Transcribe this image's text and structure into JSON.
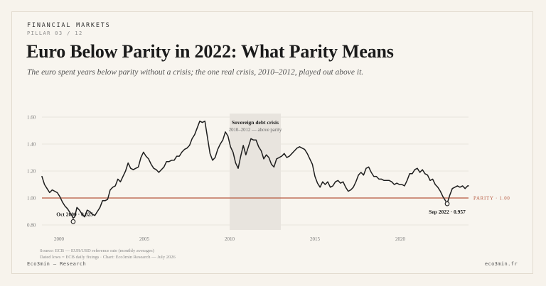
{
  "header": {
    "kicker": "FINANCIAL MARKETS",
    "pillar": "PILLAR 03 / 12",
    "title": "Euro Below Parity in 2022: What Parity Means",
    "subtitle": "The euro spent years below parity without a crisis; the one real crisis, 2010–2012, played out above it."
  },
  "footer": {
    "source_line1": "Source: ECB — EUR/USD reference rate (monthly averages)",
    "source_line2": "Dated lows = ECB daily fixings · Chart: Eco3min Research — July 2026",
    "left": "Eco3min — Research",
    "right": "eco3min.fr"
  },
  "colors": {
    "line": "#1e1e1e",
    "parity": "#b5573d",
    "shade": "#e8e4de",
    "grid": "#e4dfd6",
    "tick": "#7a7a7a"
  },
  "chart_data": {
    "type": "line",
    "xlim": [
      1999.0,
      2024.0
    ],
    "ylim": [
      0.8,
      1.6
    ],
    "yticks": [
      {
        "value": 0.8,
        "label": "0.80"
      },
      {
        "value": 1.0,
        "label": "1.00"
      },
      {
        "value": 1.2,
        "label": "1.20"
      },
      {
        "value": 1.4,
        "label": "1.40"
      },
      {
        "value": 1.6,
        "label": "1.60"
      }
    ],
    "xticks": [
      {
        "value": 2000,
        "label": "2000"
      },
      {
        "value": 2005,
        "label": "2005"
      },
      {
        "value": 2010,
        "label": "2010"
      },
      {
        "value": 2015,
        "label": "2015"
      },
      {
        "value": 2020,
        "label": "2020"
      }
    ],
    "grid": true,
    "series": [
      {
        "x": [
          1999.0,
          1999.15,
          1999.3,
          1999.45,
          1999.6,
          1999.75,
          1999.9,
          2000.05,
          2000.2,
          2000.35,
          2000.5,
          2000.6,
          2000.75,
          2000.83,
          2000.92,
          2001.05,
          2001.2,
          2001.35,
          2001.5,
          2001.65,
          2001.8,
          2001.95,
          2002.1,
          2002.25,
          2002.4,
          2002.55,
          2002.7,
          2002.85,
          2003.0,
          2003.15,
          2003.3,
          2003.45,
          2003.6,
          2003.75,
          2003.9,
          2004.05,
          2004.2,
          2004.35,
          2004.5,
          2004.65,
          2004.8,
          2004.95,
          2005.1,
          2005.25,
          2005.4,
          2005.55,
          2005.7,
          2005.85,
          2006.0,
          2006.15,
          2006.3,
          2006.45,
          2006.6,
          2006.75,
          2006.9,
          2007.05,
          2007.2,
          2007.35,
          2007.5,
          2007.65,
          2007.8,
          2007.95,
          2008.1,
          2008.25,
          2008.4,
          2008.55,
          2008.7,
          2008.85,
          2009.0,
          2009.15,
          2009.3,
          2009.45,
          2009.6,
          2009.75,
          2009.9,
          2010.05,
          2010.2,
          2010.35,
          2010.5,
          2010.65,
          2010.8,
          2010.95,
          2011.1,
          2011.25,
          2011.4,
          2011.55,
          2011.7,
          2011.85,
          2012.0,
          2012.15,
          2012.3,
          2012.45,
          2012.6,
          2012.75,
          2012.9,
          2013.05,
          2013.2,
          2013.35,
          2013.5,
          2013.65,
          2013.8,
          2013.95,
          2014.1,
          2014.25,
          2014.4,
          2014.55,
          2014.7,
          2014.85,
          2015.0,
          2015.15,
          2015.3,
          2015.45,
          2015.6,
          2015.75,
          2015.9,
          2016.05,
          2016.2,
          2016.35,
          2016.5,
          2016.65,
          2016.8,
          2016.95,
          2017.1,
          2017.25,
          2017.4,
          2017.55,
          2017.7,
          2017.85,
          2018.0,
          2018.15,
          2018.3,
          2018.45,
          2018.6,
          2018.75,
          2018.9,
          2019.05,
          2019.2,
          2019.35,
          2019.5,
          2019.65,
          2019.8,
          2019.95,
          2020.1,
          2020.25,
          2020.4,
          2020.55,
          2020.7,
          2020.85,
          2021.0,
          2021.15,
          2021.3,
          2021.45,
          2021.6,
          2021.75,
          2021.9,
          2022.05,
          2022.2,
          2022.35,
          2022.5,
          2022.65,
          2022.75,
          2022.9,
          2023.05,
          2023.2,
          2023.35,
          2023.5,
          2023.65,
          2023.8,
          2023.95,
          2024.0
        ],
        "values": [
          1.16,
          1.1,
          1.07,
          1.04,
          1.06,
          1.05,
          1.04,
          1.01,
          0.97,
          0.94,
          0.92,
          0.9,
          0.87,
          0.85,
          0.86,
          0.93,
          0.91,
          0.88,
          0.86,
          0.91,
          0.9,
          0.88,
          0.87,
          0.9,
          0.93,
          0.98,
          0.98,
          0.99,
          1.06,
          1.08,
          1.09,
          1.14,
          1.12,
          1.16,
          1.2,
          1.26,
          1.22,
          1.21,
          1.22,
          1.23,
          1.3,
          1.34,
          1.31,
          1.29,
          1.25,
          1.22,
          1.21,
          1.19,
          1.21,
          1.23,
          1.27,
          1.27,
          1.28,
          1.28,
          1.31,
          1.31,
          1.34,
          1.36,
          1.37,
          1.39,
          1.44,
          1.47,
          1.52,
          1.57,
          1.56,
          1.57,
          1.45,
          1.33,
          1.28,
          1.3,
          1.36,
          1.4,
          1.43,
          1.49,
          1.46,
          1.38,
          1.34,
          1.26,
          1.22,
          1.31,
          1.39,
          1.32,
          1.38,
          1.44,
          1.43,
          1.43,
          1.38,
          1.35,
          1.29,
          1.32,
          1.3,
          1.25,
          1.23,
          1.29,
          1.3,
          1.31,
          1.33,
          1.3,
          1.31,
          1.33,
          1.35,
          1.37,
          1.38,
          1.37,
          1.36,
          1.33,
          1.29,
          1.25,
          1.16,
          1.11,
          1.08,
          1.12,
          1.1,
          1.12,
          1.08,
          1.09,
          1.12,
          1.13,
          1.11,
          1.12,
          1.08,
          1.05,
          1.06,
          1.08,
          1.12,
          1.17,
          1.19,
          1.17,
          1.22,
          1.23,
          1.19,
          1.16,
          1.16,
          1.14,
          1.14,
          1.13,
          1.13,
          1.13,
          1.12,
          1.1,
          1.11,
          1.1,
          1.1,
          1.09,
          1.13,
          1.18,
          1.18,
          1.21,
          1.22,
          1.19,
          1.21,
          1.18,
          1.17,
          1.13,
          1.14,
          1.1,
          1.08,
          1.05,
          1.01,
          0.98,
          0.96,
          1.02,
          1.07,
          1.08,
          1.09,
          1.08,
          1.09,
          1.07,
          1.09,
          1.09
        ]
      }
    ],
    "shaded_region": {
      "x": [
        2010.0,
        2013.0
      ],
      "title": "Sovereign debt crisis",
      "subtitle": "2010–2012 — above parity"
    },
    "reference_line": {
      "y": 1.0,
      "label": "PARITY · 1.00"
    },
    "annotations": [
      {
        "x": 2000.83,
        "y": 0.825,
        "label": "Oct 2000 · 0.825",
        "position": "above-left"
      },
      {
        "x": 2022.75,
        "y": 0.957,
        "label": "Sep 2022 · 0.957",
        "position": "below"
      }
    ]
  }
}
